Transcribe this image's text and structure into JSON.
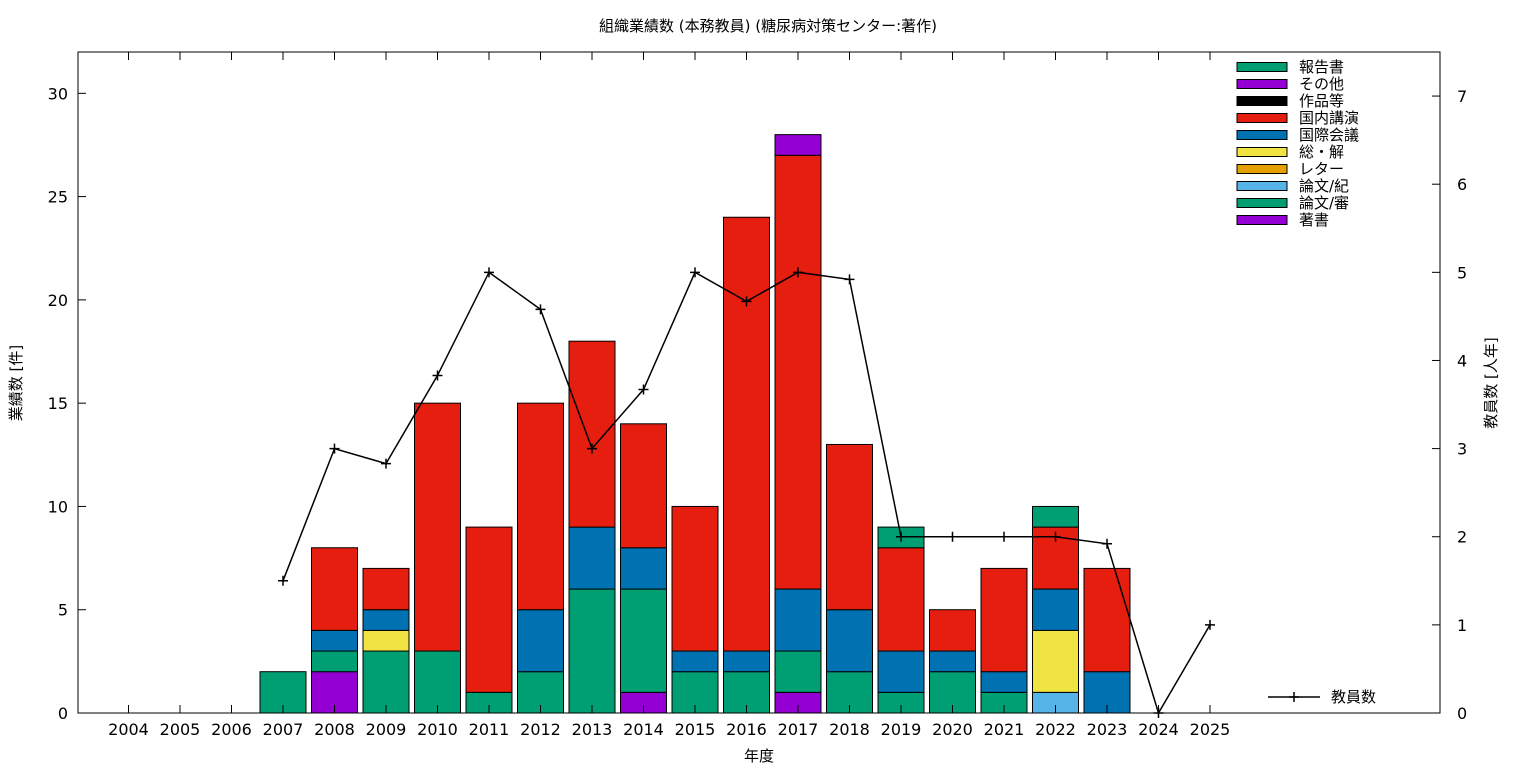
{
  "chart_data": {
    "type": "bar",
    "title": "組織業績数 (本務教員) (糖尿病対策センター:著作)",
    "xlabel": "年度",
    "ylabel": "業績数 [件]",
    "y2label": "教員数 [人年]",
    "ylim": [
      0,
      32
    ],
    "y2lim": [
      0,
      7.5
    ],
    "yticks": [
      "0",
      "5",
      "10",
      "15",
      "20",
      "25",
      "30"
    ],
    "y2ticks": [
      "0",
      "1",
      "2",
      "3",
      "4",
      "5",
      "6",
      "7"
    ],
    "stacked": true,
    "categories": [
      "2004",
      "2005",
      "2006",
      "2007",
      "2008",
      "2009",
      "2010",
      "2011",
      "2012",
      "2013",
      "2014",
      "2015",
      "2016",
      "2017",
      "2018",
      "2019",
      "2020",
      "2021",
      "2022",
      "2023",
      "2024",
      "2025"
    ],
    "series": [
      {
        "name": "著書",
        "color": "#9400d3",
        "values": [
          0,
          0,
          0,
          0,
          2,
          0,
          0,
          0,
          0,
          0,
          1,
          0,
          0,
          1,
          0,
          0,
          0,
          0,
          0,
          0,
          0,
          0
        ]
      },
      {
        "name": "論文/審",
        "color": "#009e73",
        "values": [
          0,
          0,
          0,
          2,
          1,
          3,
          3,
          1,
          2,
          6,
          5,
          2,
          2,
          2,
          2,
          1,
          2,
          1,
          0,
          0,
          0,
          0
        ]
      },
      {
        "name": "論文/紀",
        "color": "#56b4e9",
        "values": [
          0,
          0,
          0,
          0,
          0,
          0,
          0,
          0,
          0,
          0,
          0,
          0,
          0,
          0,
          0,
          0,
          0,
          0,
          1,
          0,
          0,
          0
        ]
      },
      {
        "name": "レター",
        "color": "#e69f00",
        "values": [
          0,
          0,
          0,
          0,
          0,
          0,
          0,
          0,
          0,
          0,
          0,
          0,
          0,
          0,
          0,
          0,
          0,
          0,
          0,
          0,
          0,
          0
        ]
      },
      {
        "name": "総・解",
        "color": "#f0e442",
        "values": [
          0,
          0,
          0,
          0,
          0,
          1,
          0,
          0,
          0,
          0,
          0,
          0,
          0,
          0,
          0,
          0,
          0,
          0,
          3,
          0,
          0,
          0
        ]
      },
      {
        "name": "国際会議",
        "color": "#0072b2",
        "values": [
          0,
          0,
          0,
          0,
          1,
          1,
          0,
          0,
          3,
          3,
          2,
          1,
          1,
          3,
          3,
          2,
          1,
          1,
          2,
          2,
          0,
          0
        ]
      },
      {
        "name": "国内講演",
        "color": "#e51e10",
        "values": [
          0,
          0,
          0,
          0,
          4,
          2,
          12,
          8,
          10,
          9,
          6,
          7,
          21,
          21,
          8,
          5,
          2,
          5,
          3,
          5,
          0,
          0
        ]
      },
      {
        "name": "作品等",
        "color": "#000000",
        "values": [
          0,
          0,
          0,
          0,
          0,
          0,
          0,
          0,
          0,
          0,
          0,
          0,
          0,
          0,
          0,
          0,
          0,
          0,
          0,
          0,
          0,
          0
        ]
      },
      {
        "name": "その他",
        "color": "#9400d3",
        "values": [
          0,
          0,
          0,
          0,
          0,
          0,
          0,
          0,
          0,
          0,
          0,
          0,
          0,
          1,
          0,
          0,
          0,
          0,
          0,
          0,
          0,
          0
        ]
      },
      {
        "name": "報告書",
        "color": "#009e73",
        "values": [
          0,
          0,
          0,
          0,
          0,
          0,
          0,
          0,
          0,
          0,
          0,
          0,
          0,
          0,
          0,
          1,
          0,
          0,
          1,
          0,
          0,
          0
        ]
      }
    ],
    "legend_order": [
      "報告書",
      "その他",
      "作品等",
      "国内講演",
      "国際会議",
      "総・解",
      "レター",
      "論文/紀",
      "論文/審",
      "著書"
    ],
    "legend_position": "top-right",
    "line_series": {
      "name": "教員数",
      "axis": "right",
      "color": "#000000",
      "x": [
        "2007",
        "2008",
        "2009",
        "2010",
        "2011",
        "2012",
        "2013",
        "2014",
        "2015",
        "2016",
        "2017",
        "2018",
        "2019",
        "2020",
        "2021",
        "2022",
        "2023",
        "2024",
        "2025"
      ],
      "values": [
        1.5,
        3.0,
        2.83,
        3.83,
        5.0,
        4.58,
        3.0,
        3.67,
        5.0,
        4.67,
        5.0,
        4.92,
        2.0,
        2.0,
        2.0,
        2.0,
        1.92,
        0.0,
        1.0
      ]
    },
    "line_legend_position": "bottom-right",
    "grid": false
  }
}
